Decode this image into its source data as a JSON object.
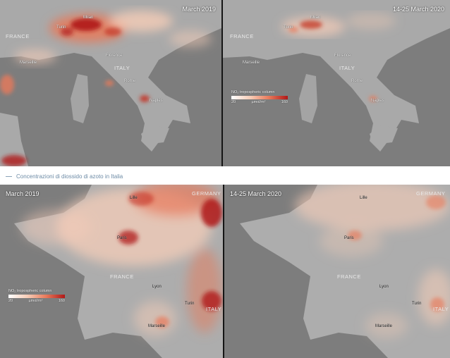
{
  "colors": {
    "sea": "#7d7d7d",
    "land": "#a9a9a9",
    "no2_low": "#f6cdb8",
    "no2_mid": "#e8795a",
    "no2_high": "#b01818"
  },
  "top_left": {
    "date": "March 2019",
    "places": [
      "FRANCE",
      "Turin",
      "Milan",
      "Marseille",
      "Florence",
      "ITALY",
      "Rome",
      "Naples"
    ]
  },
  "top_right": {
    "date": "14-25 March 2020",
    "places": [
      "FRANCE",
      "Turin",
      "Milan",
      "Marseille",
      "Florence",
      "ITALY",
      "Rome",
      "Naples"
    ],
    "legend": {
      "title": "NO₂ tropospheric column",
      "min": "20",
      "unit": "µmol/m²",
      "max": "160"
    }
  },
  "caption": "Concentrazioni di diossido di azoto in Italia",
  "bottom_left": {
    "date": "March 2019",
    "places": [
      "GERMANY",
      "Lille",
      "Paris",
      "FRANCE",
      "Lyon",
      "Turin",
      "ITALY",
      "Marseille"
    ],
    "legend": {
      "title": "NO₂ tropospheric column",
      "min": "20",
      "unit": "µmol/m²",
      "max": "160"
    }
  },
  "bottom_right": {
    "date": "14-25 March 2020",
    "places": [
      "GERMANY",
      "Lille",
      "Paris",
      "FRANCE",
      "Lyon",
      "Turin",
      "ITALY",
      "Marseille"
    ]
  }
}
